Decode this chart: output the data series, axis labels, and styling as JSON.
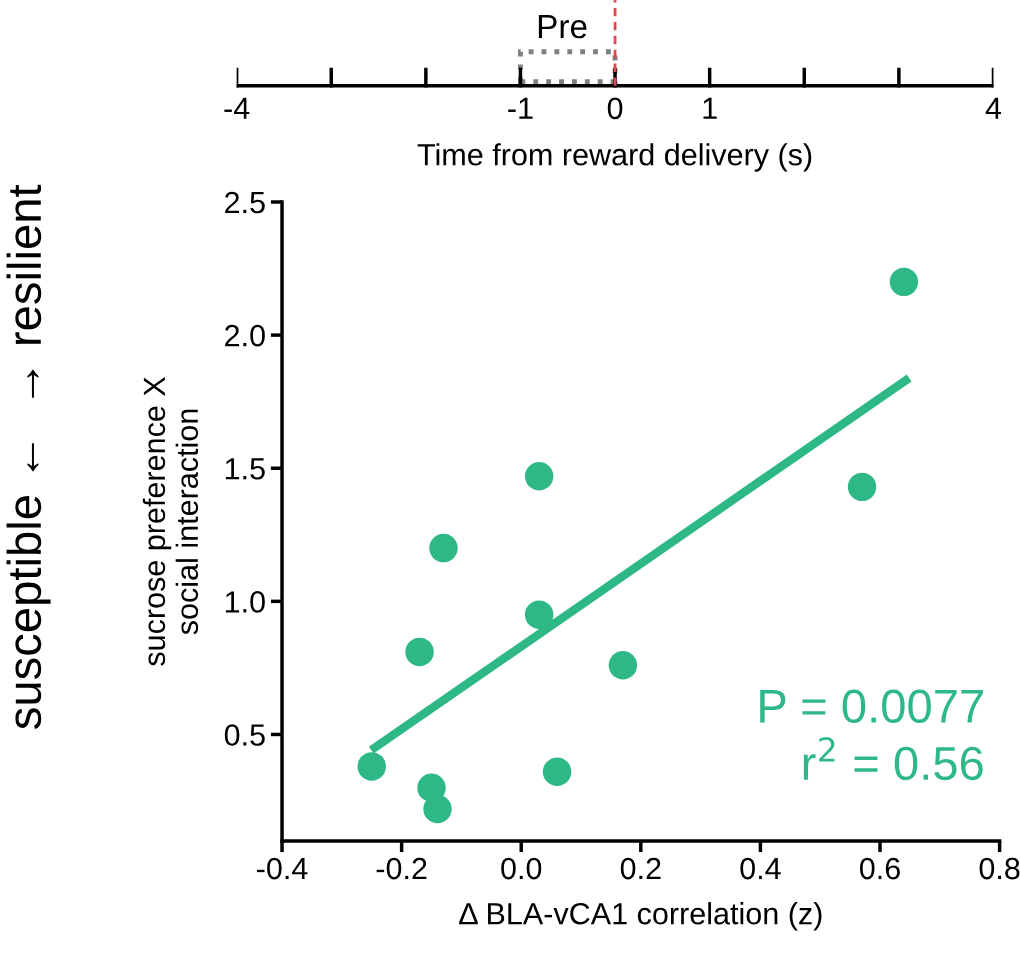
{
  "chart_data": {
    "type": "scatter",
    "xlabel": "Δ BLA-vCA1 correlation (z)",
    "ylabel": "sucrose preference X\nsocial interaction",
    "annotations": [
      "P = 0.0077",
      "r$^{2}$ = 0.56",
      "susceptible ←  → resilient",
      "Pre",
      "-4",
      "-1",
      "0",
      "1",
      "4",
      "Time from reward delivery (s)"
    ],
    "xlim": [
      -0.4,
      0.8
    ],
    "ylim": [
      0.1,
      2.5
    ],
    "xticks": [
      {
        "value": -0.4,
        "label": "-0.4"
      },
      {
        "value": -0.2,
        "label": "-0.2"
      },
      {
        "value": 0.0,
        "label": "0.0"
      },
      {
        "value": 0.2,
        "label": "0.2"
      },
      {
        "value": 0.4,
        "label": "0.4"
      },
      {
        "value": 0.6,
        "label": "0.6"
      },
      {
        "value": 0.8,
        "label": "0.8"
      }
    ],
    "yticks": [
      {
        "value": 0.5,
        "label": "0.5"
      },
      {
        "value": 1.0,
        "label": "1.0"
      },
      {
        "value": 1.5,
        "label": "1.5"
      },
      {
        "value": 2.0,
        "label": "2.0"
      },
      {
        "value": 2.5,
        "label": "2.5"
      }
    ],
    "grid": false,
    "series": [
      {
        "marker": "circle",
        "color": "#2db886",
        "x": [
          0.64,
          0.57,
          0.03,
          -0.13,
          0.03,
          -0.17,
          0.17,
          -0.25,
          0.06,
          -0.15,
          -0.14
        ],
        "values": [
          2.2,
          1.43,
          1.47,
          1.2,
          0.95,
          0.81,
          0.76,
          0.38,
          0.36,
          0.3,
          0.22
        ]
      },
      {
        "type": "line",
        "marker": "none",
        "color": "#2db886",
        "line_style": "solid",
        "x": [
          -0.245,
          0.643
        ],
        "values": [
          0.45,
          1.83
        ]
      }
    ]
  }
}
